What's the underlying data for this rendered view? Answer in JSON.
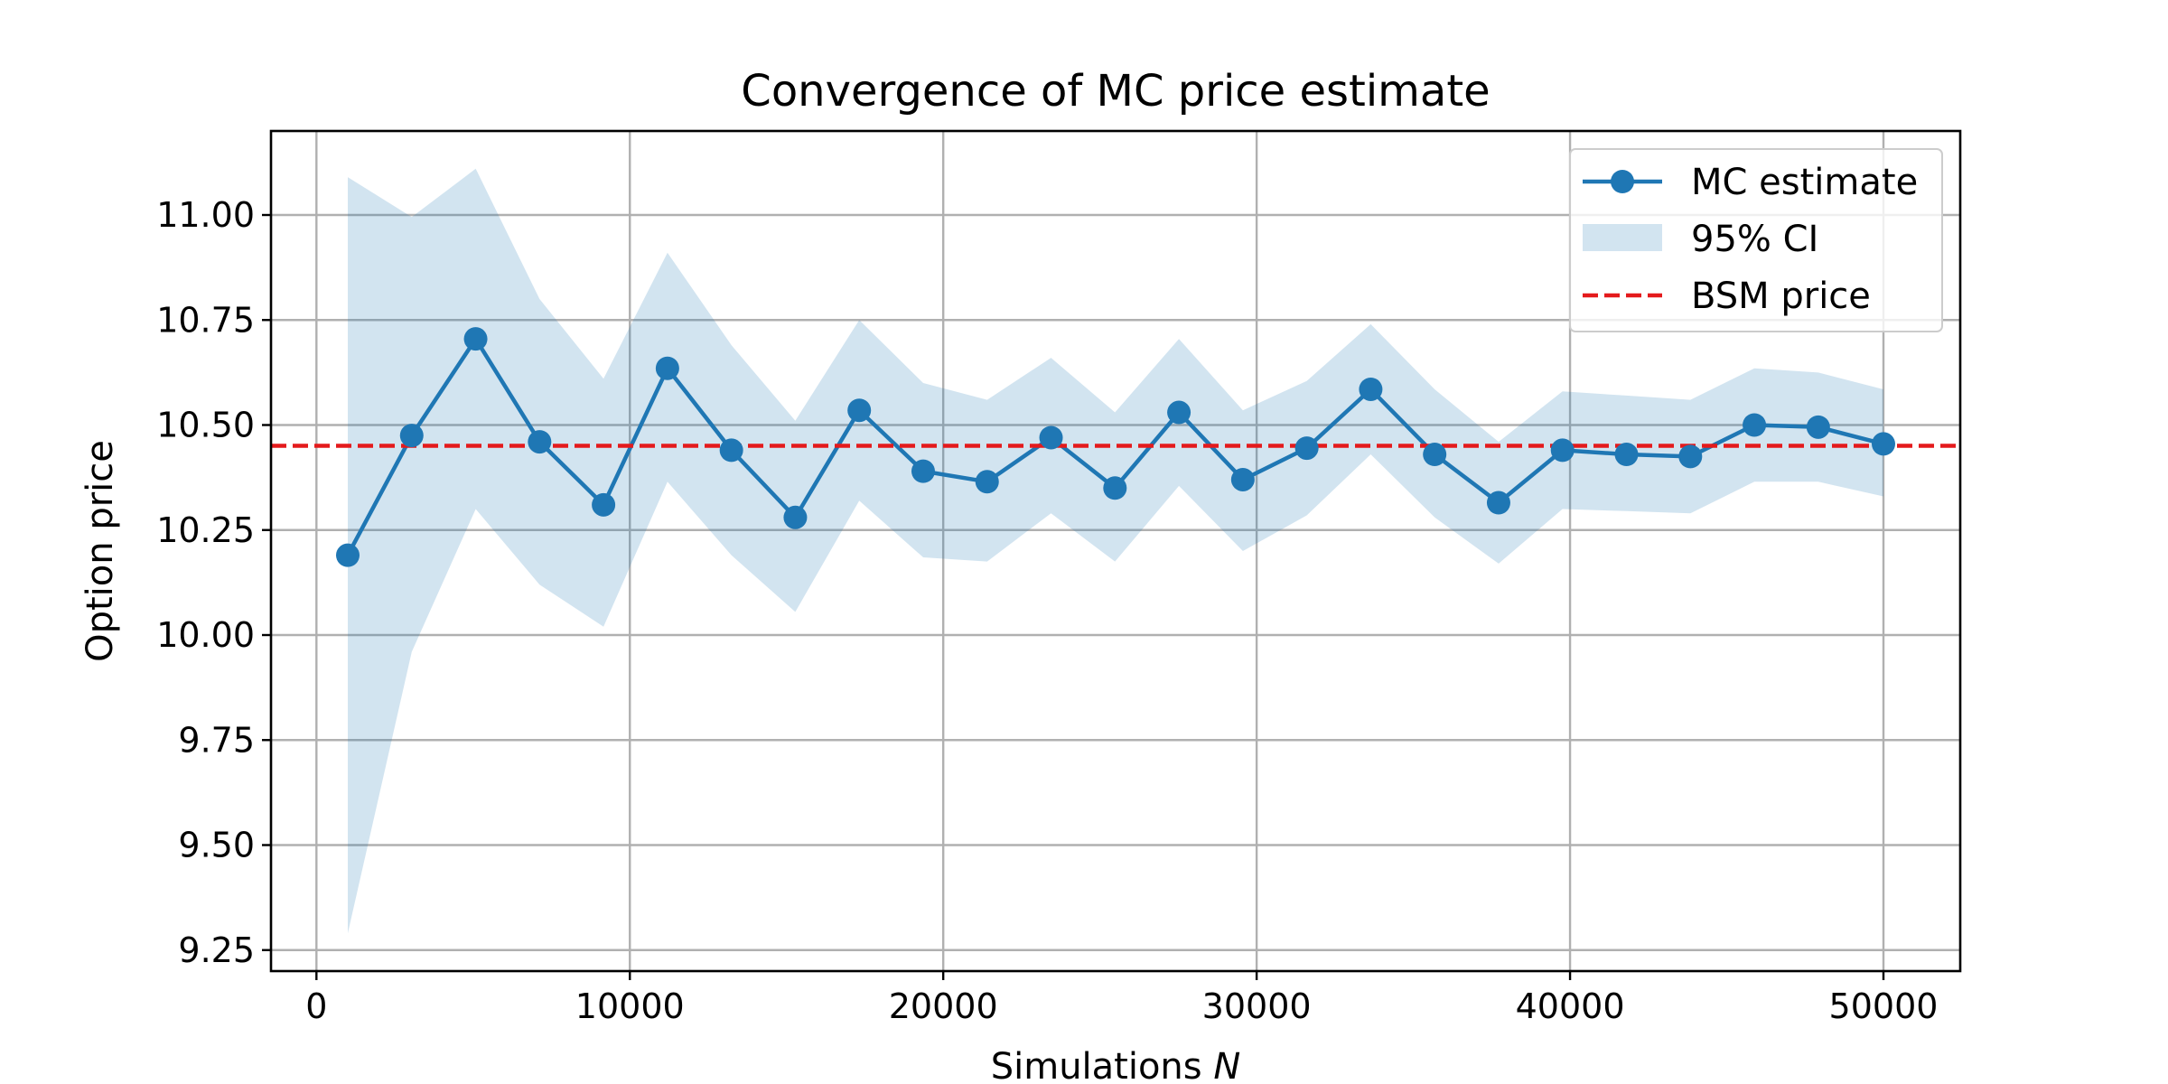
{
  "chart_data": {
    "type": "line",
    "title": "Convergence of MC price estimate",
    "xlabel_text": "Simulations ",
    "xlabel_var": "N",
    "ylabel": "Option price",
    "xlim": [
      -1450,
      52450
    ],
    "ylim": [
      9.2,
      11.2
    ],
    "x_ticks": [
      0,
      10000,
      20000,
      30000,
      40000,
      50000
    ],
    "x_tick_labels": [
      "0",
      "10000",
      "20000",
      "30000",
      "40000",
      "50000"
    ],
    "y_ticks": [
      9.25,
      9.5,
      9.75,
      10.0,
      10.25,
      10.5,
      10.75,
      11.0
    ],
    "y_tick_labels": [
      "9.25",
      "9.50",
      "9.75",
      "10.00",
      "10.25",
      "10.50",
      "10.75",
      "11.00"
    ],
    "grid": true,
    "legend_position": "top-right",
    "x": [
      1000,
      3040,
      5080,
      7120,
      9160,
      11200,
      13240,
      15280,
      17320,
      19360,
      21400,
      23440,
      25480,
      27520,
      29560,
      31600,
      33640,
      35680,
      37720,
      39760,
      41800,
      43840,
      45880,
      47920,
      50000
    ],
    "series": [
      {
        "name": "MC estimate",
        "type": "line-marker",
        "color": "#1f77b4",
        "values": [
          10.19,
          10.475,
          10.705,
          10.46,
          10.31,
          10.635,
          10.44,
          10.28,
          10.535,
          10.39,
          10.365,
          10.47,
          10.35,
          10.53,
          10.37,
          10.445,
          10.585,
          10.43,
          10.315,
          10.44,
          10.43,
          10.425,
          10.5,
          10.495,
          10.455
        ]
      },
      {
        "name": "95% CI",
        "type": "band",
        "color": "#1f77b4",
        "lower": [
          9.29,
          9.96,
          10.3,
          10.12,
          10.02,
          10.365,
          10.19,
          10.055,
          10.32,
          10.185,
          10.175,
          10.29,
          10.175,
          10.355,
          10.2,
          10.285,
          10.43,
          10.28,
          10.17,
          10.3,
          10.295,
          10.29,
          10.365,
          10.365,
          10.33
        ],
        "upper": [
          11.09,
          10.995,
          11.11,
          10.8,
          10.61,
          10.91,
          10.69,
          10.51,
          10.75,
          10.6,
          10.56,
          10.66,
          10.53,
          10.705,
          10.535,
          10.605,
          10.74,
          10.585,
          10.46,
          10.58,
          10.57,
          10.56,
          10.635,
          10.625,
          10.585
        ]
      },
      {
        "name": "BSM price",
        "type": "hline",
        "color": "#e41a1c",
        "value": 10.4506
      }
    ]
  }
}
